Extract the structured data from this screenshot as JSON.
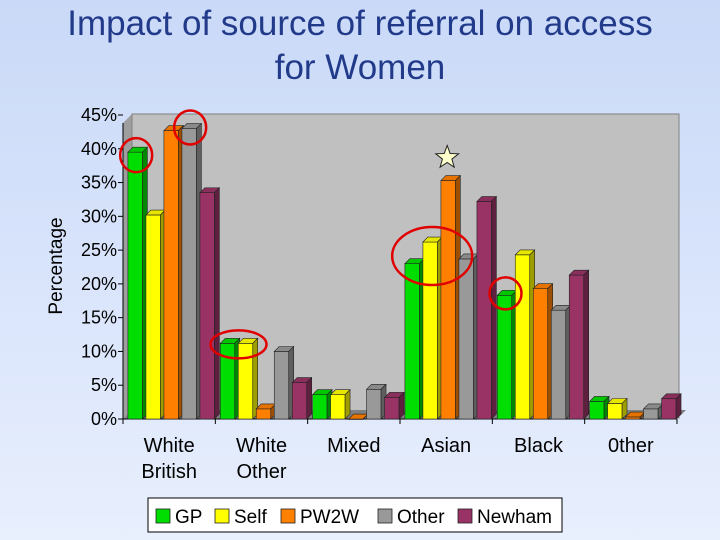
{
  "title": "Impact of source of referral on access\nfor Women",
  "chart_data": {
    "type": "bar",
    "title": "Impact of source of referral on access for Women",
    "xlabel": "",
    "ylabel": "Percentage",
    "ylim": [
      0,
      45
    ],
    "yticks": [
      "0%",
      "5%",
      "10%",
      "15%",
      "20%",
      "25%",
      "30%",
      "35%",
      "40%",
      "45%"
    ],
    "categories": [
      "White\nBritish",
      "White\nOther",
      "Mixed",
      "Asian",
      "Black",
      "0ther"
    ],
    "series": [
      {
        "name": "GP",
        "color": "#00dd00",
        "values": [
          39.5,
          11.2,
          3.6,
          23.0,
          18.3,
          2.6
        ]
      },
      {
        "name": "Self",
        "color": "#ffff00",
        "values": [
          30.2,
          11.2,
          3.6,
          26.2,
          24.3,
          2.3
        ]
      },
      {
        "name": "PW2W",
        "color": "#ff7f00",
        "values": [
          42.7,
          1.5,
          0.0,
          35.3,
          19.3,
          0.3
        ]
      },
      {
        "name": "Other",
        "color": "#999999",
        "values": [
          43.0,
          10.0,
          4.4,
          23.7,
          16.1,
          1.5
        ]
      },
      {
        "name": "Newham",
        "color": "#993366",
        "values": [
          33.5,
          5.4,
          3.2,
          32.2,
          21.3,
          3.0
        ]
      }
    ],
    "grid": false,
    "legend": "bottom",
    "annotations": {
      "circle_color": "#e00000",
      "star_icon": "star-icon"
    }
  }
}
